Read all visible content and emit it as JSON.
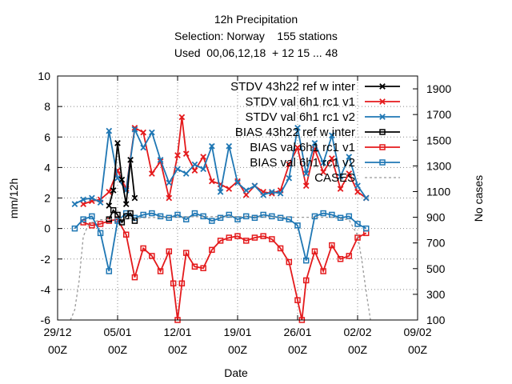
{
  "chart_data": {
    "type": "line",
    "title_lines": [
      "12h Precipitation",
      "Selection: Norway    155 stations",
      "Used  00,06,12,18  + 12 15 ... 48"
    ],
    "xlabel": "Date",
    "ylabel": "mm/12h",
    "y2label": "No cases",
    "xlim": [
      "2021-12-29T00:00",
      "2022-02-09T00:00"
    ],
    "ylim": [
      -6,
      10
    ],
    "y2lim": [
      100,
      2000
    ],
    "xticks": [
      {
        "line1": "29/12",
        "line2": "00Z"
      },
      {
        "line1": "05/01",
        "line2": "00Z"
      },
      {
        "line1": "12/01",
        "line2": "00Z"
      },
      {
        "line1": "19/01",
        "line2": "00Z"
      },
      {
        "line1": "26/01",
        "line2": "00Z"
      },
      {
        "line1": "02/02",
        "line2": "00Z"
      },
      {
        "line1": "09/02",
        "line2": "00Z"
      }
    ],
    "yticks": [
      -6,
      -4,
      -2,
      0,
      2,
      4,
      6,
      8,
      10
    ],
    "y2ticks": [
      100,
      300,
      500,
      700,
      900,
      1100,
      1300,
      1500,
      1700,
      1900
    ],
    "grid": true,
    "legend_position": "top-right",
    "series": [
      {
        "name": "STDV 43h22 ref winter",
        "label_main": "STDV 43h22",
        "label_sub": "ref",
        "label_sub2": "w",
        "label_tail": "inter",
        "color": "#000000",
        "marker": "x",
        "axis": "y1",
        "points": [
          [
            "2022-01-04T00:00",
            1.5
          ],
          [
            "2022-01-04T12:00",
            2.5
          ],
          [
            "2022-01-05T00:00",
            5.6
          ],
          [
            "2022-01-05T12:00",
            3.2
          ],
          [
            "2022-01-06T00:00",
            1.6
          ],
          [
            "2022-01-06T12:00",
            4.5
          ],
          [
            "2022-01-07T00:00",
            2.0
          ]
        ]
      },
      {
        "name": "STDV val 6h1 rc1 v1",
        "label_main": "STDV val",
        "label_sub": "6h1",
        "label_sub2": "rc1",
        "label_tail": "v1",
        "color": "#e41a1c",
        "marker": "x",
        "axis": "y1",
        "points": [
          [
            "2022-01-01T00:00",
            1.6
          ],
          [
            "2022-01-02T00:00",
            1.8
          ],
          [
            "2022-01-03T00:00",
            1.9
          ],
          [
            "2022-01-04T00:00",
            2.4
          ],
          [
            "2022-01-05T00:00",
            3.8
          ],
          [
            "2022-01-06T00:00",
            2.6
          ],
          [
            "2022-01-07T00:00",
            6.6
          ],
          [
            "2022-01-08T00:00",
            6.3
          ],
          [
            "2022-01-09T00:00",
            3.6
          ],
          [
            "2022-01-10T00:00",
            4.4
          ],
          [
            "2022-01-11T00:00",
            2.0
          ],
          [
            "2022-01-12T00:00",
            4.8
          ],
          [
            "2022-01-12T12:00",
            7.3
          ],
          [
            "2022-01-13T00:00",
            4.9
          ],
          [
            "2022-01-14T00:00",
            3.8
          ],
          [
            "2022-01-15T00:00",
            4.7
          ],
          [
            "2022-01-16T00:00",
            3.1
          ],
          [
            "2022-01-17T00:00",
            2.9
          ],
          [
            "2022-01-18T00:00",
            2.6
          ],
          [
            "2022-01-19T00:00",
            3.1
          ],
          [
            "2022-01-20T00:00",
            2.2
          ],
          [
            "2022-01-21T00:00",
            2.8
          ],
          [
            "2022-01-22T00:00",
            2.4
          ],
          [
            "2022-01-23T00:00",
            2.3
          ],
          [
            "2022-01-24T00:00",
            2.5
          ],
          [
            "2022-01-25T00:00",
            4.2
          ],
          [
            "2022-01-26T00:00",
            5.3
          ],
          [
            "2022-01-27T00:00",
            2.8
          ],
          [
            "2022-01-28T00:00",
            5.2
          ],
          [
            "2022-01-29T00:00",
            3.7
          ],
          [
            "2022-01-30T00:00",
            4.6
          ],
          [
            "2022-01-31T00:00",
            2.6
          ],
          [
            "2022-02-01T00:00",
            3.6
          ],
          [
            "2022-02-02T00:00",
            2.4
          ],
          [
            "2022-02-03T00:00",
            2.0
          ]
        ]
      },
      {
        "name": "STDV val 6h1 rc1 v2",
        "label_main": "STDV val",
        "label_sub": "6h1",
        "label_sub2": "rc1",
        "label_tail": "v2",
        "color": "#1f77b4",
        "marker": "x",
        "axis": "y1",
        "points": [
          [
            "2021-12-31T00:00",
            1.6
          ],
          [
            "2022-01-01T00:00",
            1.9
          ],
          [
            "2022-01-02T00:00",
            2.0
          ],
          [
            "2022-01-03T00:00",
            1.7
          ],
          [
            "2022-01-04T00:00",
            6.4
          ],
          [
            "2022-01-05T00:00",
            3.3
          ],
          [
            "2022-01-06T00:00",
            2.5
          ],
          [
            "2022-01-07T00:00",
            6.5
          ],
          [
            "2022-01-08T00:00",
            5.3
          ],
          [
            "2022-01-09T00:00",
            6.3
          ],
          [
            "2022-01-10T00:00",
            4.5
          ],
          [
            "2022-01-11T00:00",
            3.0
          ],
          [
            "2022-01-12T00:00",
            3.9
          ],
          [
            "2022-01-13T00:00",
            3.6
          ],
          [
            "2022-01-14T00:00",
            4.2
          ],
          [
            "2022-01-15T00:00",
            3.9
          ],
          [
            "2022-01-16T00:00",
            5.4
          ],
          [
            "2022-01-17T00:00",
            2.4
          ],
          [
            "2022-01-18T00:00",
            5.4
          ],
          [
            "2022-01-19T00:00",
            3.0
          ],
          [
            "2022-01-20T00:00",
            2.5
          ],
          [
            "2022-01-21T00:00",
            2.8
          ],
          [
            "2022-01-22T00:00",
            2.2
          ],
          [
            "2022-01-23T00:00",
            2.4
          ],
          [
            "2022-01-24T00:00",
            2.3
          ],
          [
            "2022-01-25T00:00",
            3.3
          ],
          [
            "2022-01-26T00:00",
            6.6
          ],
          [
            "2022-01-27T00:00",
            3.6
          ],
          [
            "2022-01-28T00:00",
            5.6
          ],
          [
            "2022-01-29T00:00",
            4.3
          ],
          [
            "2022-01-30T00:00",
            6.1
          ],
          [
            "2022-01-31T00:00",
            3.4
          ],
          [
            "2022-02-01T00:00",
            4.7
          ],
          [
            "2022-02-02T00:00",
            2.8
          ],
          [
            "2022-02-03T00:00",
            2.0
          ]
        ]
      },
      {
        "name": "BIAS 43h22 ref winter",
        "label_main": "BIAS 43h22",
        "label_sub": "ref",
        "label_sub2": "w",
        "label_tail": "inter",
        "color": "#000000",
        "marker": "square",
        "axis": "y1",
        "points": [
          [
            "2022-01-04T00:00",
            0.6
          ],
          [
            "2022-01-04T12:00",
            1.2
          ],
          [
            "2022-01-05T00:00",
            0.9
          ],
          [
            "2022-01-05T12:00",
            0.4
          ],
          [
            "2022-01-06T00:00",
            0.8
          ],
          [
            "2022-01-06T12:00",
            1.0
          ],
          [
            "2022-01-07T00:00",
            0.5
          ]
        ]
      },
      {
        "name": "BIAS val 6h1 rc1 v1",
        "label_main": "BIAS val",
        "label_sub": "6h1",
        "label_sub2": "rc1",
        "label_tail": "v1",
        "color": "#e41a1c",
        "marker": "square",
        "axis": "y1",
        "points": [
          [
            "2022-01-01T00:00",
            0.4
          ],
          [
            "2022-01-02T00:00",
            0.2
          ],
          [
            "2022-01-03T00:00",
            0.3
          ],
          [
            "2022-01-04T00:00",
            0.5
          ],
          [
            "2022-01-05T00:00",
            0.6
          ],
          [
            "2022-01-06T00:00",
            -0.4
          ],
          [
            "2022-01-07T00:00",
            -3.2
          ],
          [
            "2022-01-08T00:00",
            -1.3
          ],
          [
            "2022-01-09T00:00",
            -1.8
          ],
          [
            "2022-01-10T00:00",
            -2.8
          ],
          [
            "2022-01-11T00:00",
            -1.5
          ],
          [
            "2022-01-11T12:00",
            -3.6
          ],
          [
            "2022-01-12T00:00",
            -6.0
          ],
          [
            "2022-01-12T12:00",
            -3.6
          ],
          [
            "2022-01-13T00:00",
            -1.6
          ],
          [
            "2022-01-14T00:00",
            -2.5
          ],
          [
            "2022-01-15T00:00",
            -2.6
          ],
          [
            "2022-01-16T00:00",
            -1.4
          ],
          [
            "2022-01-17T00:00",
            -0.8
          ],
          [
            "2022-01-18T00:00",
            -0.6
          ],
          [
            "2022-01-19T00:00",
            -0.5
          ],
          [
            "2022-01-20T00:00",
            -0.8
          ],
          [
            "2022-01-21T00:00",
            -0.6
          ],
          [
            "2022-01-22T00:00",
            -0.5
          ],
          [
            "2022-01-23T00:00",
            -0.7
          ],
          [
            "2022-01-24T00:00",
            -1.3
          ],
          [
            "2022-01-25T00:00",
            -2.2
          ],
          [
            "2022-01-26T00:00",
            -4.7
          ],
          [
            "2022-01-26T12:00",
            -6.0
          ],
          [
            "2022-01-27T00:00",
            -3.4
          ],
          [
            "2022-01-28T00:00",
            -1.5
          ],
          [
            "2022-01-29T00:00",
            -2.8
          ],
          [
            "2022-01-30T00:00",
            -1.1
          ],
          [
            "2022-01-31T00:00",
            -2.0
          ],
          [
            "2022-02-01T00:00",
            -1.8
          ],
          [
            "2022-02-02T00:00",
            -0.6
          ],
          [
            "2022-02-03T00:00",
            -0.3
          ]
        ]
      },
      {
        "name": "BIAS val 6h1 rc1 v2",
        "label_main": "BIAS val",
        "label_sub": "6h1",
        "label_sub2": "rc1",
        "label_tail": "v2",
        "color": "#1f77b4",
        "marker": "square",
        "axis": "y1",
        "points": [
          [
            "2021-12-31T00:00",
            0.0
          ],
          [
            "2022-01-01T00:00",
            0.6
          ],
          [
            "2022-01-02T00:00",
            0.8
          ],
          [
            "2022-01-03T00:00",
            -0.3
          ],
          [
            "2022-01-04T00:00",
            -2.8
          ],
          [
            "2022-01-05T00:00",
            0.5
          ],
          [
            "2022-01-06T00:00",
            1.0
          ],
          [
            "2022-01-07T00:00",
            0.7
          ],
          [
            "2022-01-08T00:00",
            0.9
          ],
          [
            "2022-01-09T00:00",
            1.0
          ],
          [
            "2022-01-10T00:00",
            0.8
          ],
          [
            "2022-01-11T00:00",
            0.7
          ],
          [
            "2022-01-12T00:00",
            0.9
          ],
          [
            "2022-01-13T00:00",
            0.6
          ],
          [
            "2022-01-14T00:00",
            1.0
          ],
          [
            "2022-01-15T00:00",
            0.8
          ],
          [
            "2022-01-16T00:00",
            0.5
          ],
          [
            "2022-01-17T00:00",
            0.7
          ],
          [
            "2022-01-18T00:00",
            0.9
          ],
          [
            "2022-01-19T00:00",
            0.6
          ],
          [
            "2022-01-20T00:00",
            0.8
          ],
          [
            "2022-01-21T00:00",
            0.7
          ],
          [
            "2022-01-22T00:00",
            0.9
          ],
          [
            "2022-01-23T00:00",
            0.8
          ],
          [
            "2022-01-24T00:00",
            0.7
          ],
          [
            "2022-01-25T00:00",
            0.6
          ],
          [
            "2022-01-26T00:00",
            0.2
          ],
          [
            "2022-01-27T00:00",
            -2.1
          ],
          [
            "2022-01-28T00:00",
            0.8
          ],
          [
            "2022-01-29T00:00",
            1.0
          ],
          [
            "2022-01-30T00:00",
            0.9
          ],
          [
            "2022-01-31T00:00",
            0.7
          ],
          [
            "2022-02-01T00:00",
            0.8
          ],
          [
            "2022-02-02T00:00",
            0.3
          ],
          [
            "2022-02-03T00:00",
            0.0
          ]
        ]
      },
      {
        "name": "CASES",
        "label_main": "CASES",
        "color": "#999999",
        "marker": "none",
        "dashed": true,
        "axis": "y2",
        "points": [
          [
            "2021-12-30T12:00",
            100
          ],
          [
            "2021-12-31T00:00",
            180
          ],
          [
            "2021-12-31T12:00",
            400
          ],
          [
            "2022-01-01T00:00",
            750
          ],
          [
            "2022-01-01T12:00",
            830
          ],
          [
            "2022-01-02T00:00",
            860
          ],
          [
            "2022-01-03T00:00",
            880
          ],
          [
            "2022-01-05T00:00",
            890
          ],
          [
            "2022-01-10T00:00",
            900
          ],
          [
            "2022-01-15T00:00",
            905
          ],
          [
            "2022-01-20T00:00",
            905
          ],
          [
            "2022-01-25T00:00",
            900
          ],
          [
            "2022-01-30T00:00",
            900
          ],
          [
            "2022-02-01T00:00",
            880
          ],
          [
            "2022-02-02T00:00",
            760
          ],
          [
            "2022-02-02T12:00",
            560
          ],
          [
            "2022-02-03T00:00",
            320
          ],
          [
            "2022-02-03T12:00",
            100
          ]
        ]
      }
    ]
  }
}
